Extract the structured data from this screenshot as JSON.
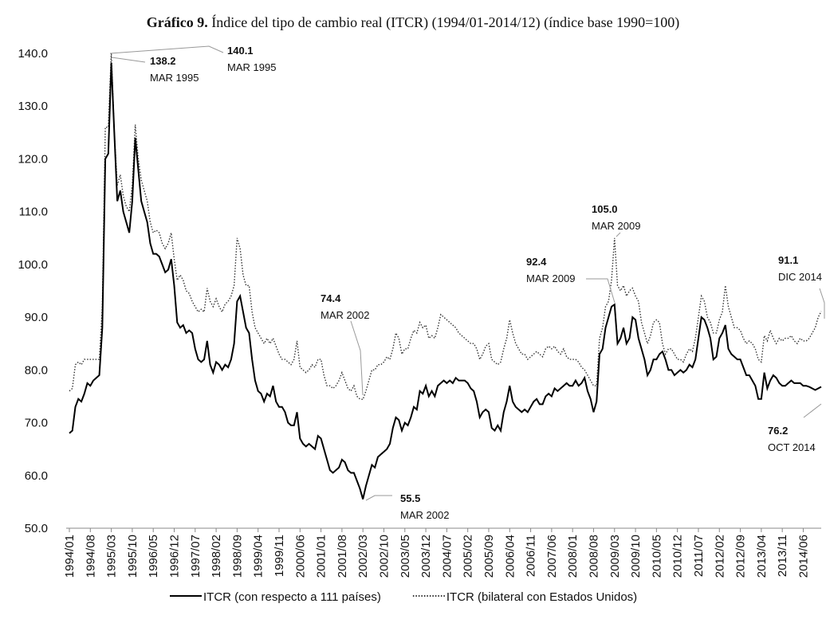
{
  "chart_data": {
    "type": "line",
    "title_label": "Gráfico 9.",
    "title": "Índice del tipo de cambio real (ITCR) (1994/01-2014/12) (índice base 1990=100)",
    "categories": [
      "1994/01",
      null,
      null,
      null,
      null,
      null,
      null,
      "1994/08",
      null,
      null,
      null,
      null,
      null,
      null,
      "1995/03",
      null,
      null,
      null,
      null,
      null,
      null,
      "1995/10",
      null,
      null,
      null,
      null,
      null,
      null,
      "1996/05",
      null,
      null,
      null,
      null,
      null,
      null,
      "1996/12",
      null,
      null,
      null,
      null,
      null,
      null,
      "1997/07",
      null,
      null,
      null,
      null,
      null,
      null,
      "1998/02",
      null,
      null,
      null,
      null,
      null,
      null,
      "1998/09",
      null,
      null,
      null,
      null,
      null,
      null,
      "1999/04",
      null,
      null,
      null,
      null,
      null,
      null,
      "1999/11",
      null,
      null,
      null,
      null,
      null,
      null,
      "2000/06",
      null,
      null,
      null,
      null,
      null,
      null,
      "2001/01",
      null,
      null,
      null,
      null,
      null,
      null,
      "2001/08",
      null,
      null,
      null,
      null,
      null,
      null,
      "2002/03",
      null,
      null,
      null,
      null,
      null,
      null,
      "2002/10",
      null,
      null,
      null,
      null,
      null,
      null,
      "2003/05",
      null,
      null,
      null,
      null,
      null,
      null,
      "2003/12",
      null,
      null,
      null,
      null,
      null,
      null,
      "2004/07",
      null,
      null,
      null,
      null,
      null,
      null,
      "2005/02",
      null,
      null,
      null,
      null,
      null,
      null,
      "2005/09",
      null,
      null,
      null,
      null,
      null,
      null,
      "2006/04",
      null,
      null,
      null,
      null,
      null,
      null,
      "2006/11",
      null,
      null,
      null,
      null,
      null,
      null,
      "2007/06",
      null,
      null,
      null,
      null,
      null,
      null,
      "2008/01",
      null,
      null,
      null,
      null,
      null,
      null,
      "2008/08",
      null,
      null,
      null,
      null,
      null,
      null,
      "2009/03",
      null,
      null,
      null,
      null,
      null,
      null,
      "2009/10",
      null,
      null,
      null,
      null,
      null,
      null,
      "2010/05",
      null,
      null,
      null,
      null,
      null,
      null,
      "2010/12",
      null,
      null,
      null,
      null,
      null,
      null,
      "2011/07",
      null,
      null,
      null,
      null,
      null,
      null,
      "2012/02",
      null,
      null,
      null,
      null,
      null,
      null,
      "2012/09",
      null,
      null,
      null,
      null,
      null,
      null,
      "2013/04",
      null,
      null,
      null,
      null,
      null,
      null,
      "2013/11",
      null,
      null,
      null,
      null,
      null,
      null,
      "2014/06",
      null,
      null,
      null,
      null,
      null,
      null
    ],
    "series": [
      {
        "name": "ITCR (con respecto a 111 países)",
        "color": "#000000",
        "style": "solid",
        "values": [
          68,
          68.5,
          73,
          74.5,
          74,
          75.5,
          77.5,
          77,
          78,
          78.5,
          79,
          88,
          120,
          121,
          138.2,
          125,
          112,
          114,
          110,
          108,
          106,
          112,
          124,
          118,
          112,
          110,
          108,
          104,
          102,
          102,
          101.5,
          100,
          98.5,
          99,
          101,
          96,
          89,
          88,
          88.5,
          87,
          87.5,
          87,
          84,
          82,
          81.5,
          82,
          85.5,
          81,
          79.5,
          81.5,
          81,
          80,
          81,
          80.5,
          82,
          85,
          93,
          94,
          91,
          88,
          87,
          82,
          78,
          76,
          75.5,
          74,
          75.5,
          75,
          77,
          74,
          73,
          73,
          72,
          70,
          69.5,
          69.5,
          72,
          67,
          66,
          65.5,
          66,
          65.5,
          65,
          67.5,
          67,
          65,
          63,
          61,
          60.5,
          61,
          61.5,
          63,
          62.5,
          61,
          60.5,
          60.5,
          59,
          57.5,
          55.5,
          58,
          60,
          62,
          61.5,
          63.5,
          64,
          64.5,
          65,
          66,
          69,
          71,
          70.5,
          68.5,
          70,
          69.5,
          71,
          73,
          72.5,
          76,
          75.5,
          77,
          75,
          76,
          75,
          77,
          77.5,
          78,
          77.5,
          78,
          77.5,
          78.5,
          78,
          78,
          78,
          77.5,
          76.5,
          76,
          74,
          71,
          72,
          72.5,
          72,
          69,
          68.5,
          69.5,
          68.5,
          72,
          74,
          77,
          74,
          73,
          72.5,
          72,
          72.5,
          72,
          73,
          74,
          74.5,
          73.5,
          73.5,
          75,
          75.5,
          75,
          76.5,
          76,
          76.5,
          77,
          77.5,
          77,
          77,
          78,
          77,
          77.5,
          78.5,
          76,
          74.5,
          72,
          74,
          83,
          84,
          88,
          90,
          92,
          92.4,
          85,
          86,
          88,
          85,
          86,
          90,
          89.5,
          86,
          84,
          82,
          79,
          80,
          82,
          82,
          83,
          83.5,
          82,
          80,
          80,
          79,
          79.5,
          80,
          79.5,
          80,
          81,
          80.5,
          82,
          86,
          90,
          89.5,
          88,
          86,
          82,
          82.5,
          86,
          87,
          88.5,
          84,
          83,
          82.5,
          82,
          82,
          80.5,
          79,
          79,
          78,
          77,
          74.5,
          74.5,
          79.5,
          76.5,
          78,
          79,
          78.5,
          77.5,
          77,
          77,
          77.5,
          78,
          77.5,
          77.5,
          77.5,
          77,
          77,
          76.8,
          76.5,
          76.2,
          76.5,
          76.8
        ]
      },
      {
        "name": "ITCR (bilateral con Estados Unidos)",
        "color": "#333333",
        "style": "dotted",
        "values": [
          76,
          76.5,
          81,
          81.5,
          81,
          82,
          82,
          82,
          82,
          82,
          82,
          92,
          126,
          126,
          140.1,
          125,
          115,
          117,
          113,
          111,
          110,
          115,
          126.5,
          120,
          116,
          114,
          112,
          108,
          106,
          106.5,
          106,
          104,
          103,
          104,
          106,
          101,
          97,
          98,
          97,
          95,
          94.5,
          93,
          92,
          91,
          91.5,
          91,
          95.5,
          93,
          92,
          93.5,
          92,
          91,
          92.5,
          93,
          94,
          96,
          105,
          103,
          98,
          96,
          96,
          91,
          88,
          87,
          86,
          85,
          86,
          85,
          86,
          84.5,
          83,
          82,
          82,
          81.5,
          81,
          82,
          85.5,
          80.5,
          80,
          79.5,
          80,
          81,
          80.5,
          82,
          82,
          79,
          77,
          77,
          76.5,
          77,
          78,
          79.5,
          78,
          76.5,
          76,
          77,
          75,
          74.5,
          74.4,
          76,
          78,
          80,
          80,
          81,
          81,
          81.5,
          82.5,
          82,
          84,
          87,
          86,
          83,
          84,
          84,
          86,
          87.5,
          87,
          89,
          88,
          88.5,
          86,
          86.5,
          86,
          88,
          90.5,
          90,
          89.5,
          89,
          88.5,
          88,
          87,
          86.5,
          86,
          85.5,
          85,
          85,
          84,
          82,
          83,
          84.5,
          85,
          82,
          81.5,
          81,
          81.5,
          84,
          86,
          89.5,
          87,
          85,
          84,
          83,
          83,
          82,
          82.5,
          83,
          83.5,
          83,
          82.5,
          84,
          84.5,
          84,
          84.5,
          83.5,
          83,
          84,
          82.5,
          82,
          82,
          82,
          81.5,
          80.5,
          80,
          79,
          78,
          77,
          77,
          86,
          88,
          92,
          93,
          97,
          105,
          96,
          95,
          96,
          94,
          95,
          95.5,
          94,
          93,
          89,
          87,
          85,
          86.5,
          89,
          89.5,
          89,
          85,
          83,
          84,
          84,
          83,
          82,
          82,
          81.5,
          83,
          84,
          83.5,
          86,
          90,
          94,
          93,
          90,
          89,
          87,
          87,
          89.5,
          91,
          96,
          92,
          90,
          88,
          88,
          87.5,
          86,
          85,
          85.5,
          85,
          84,
          82,
          81.5,
          86.5,
          85.5,
          87.5,
          86,
          85,
          86,
          85.5,
          86,
          86,
          86.5,
          85.5,
          85,
          86,
          85.5,
          85.5,
          86,
          87,
          88,
          90,
          91.1
        ]
      }
    ],
    "annotations": [
      {
        "value_label": "140.1",
        "date": "MAR 1995"
      },
      {
        "value_label": "138.2",
        "date": "MAR 1995"
      },
      {
        "value_label": "74.4",
        "date": "MAR 2002"
      },
      {
        "value_label": "55.5",
        "date": "MAR 2002"
      },
      {
        "value_label": "92.4",
        "date": "MAR 2009"
      },
      {
        "value_label": "105.0",
        "date": "MAR 2009"
      },
      {
        "value_label": "91.1",
        "date": "DIC 2014"
      },
      {
        "value_label": "76.2",
        "date": "OCT 2014"
      }
    ],
    "ylim": [
      50,
      140
    ],
    "yticks": [
      {
        "value": 50,
        "label": "50.0"
      },
      {
        "value": 60,
        "label": "60.0"
      },
      {
        "value": 70,
        "label": "70.0"
      },
      {
        "value": 80,
        "label": "80.0"
      },
      {
        "value": 90,
        "label": "90.0"
      },
      {
        "value": 100,
        "label": "100.0"
      },
      {
        "value": 110,
        "label": "110.0"
      },
      {
        "value": 120,
        "label": "120.0"
      },
      {
        "value": 130,
        "label": "130.0"
      },
      {
        "value": 140,
        "label": "140.0"
      }
    ],
    "grid": false,
    "legend": "bottom"
  }
}
